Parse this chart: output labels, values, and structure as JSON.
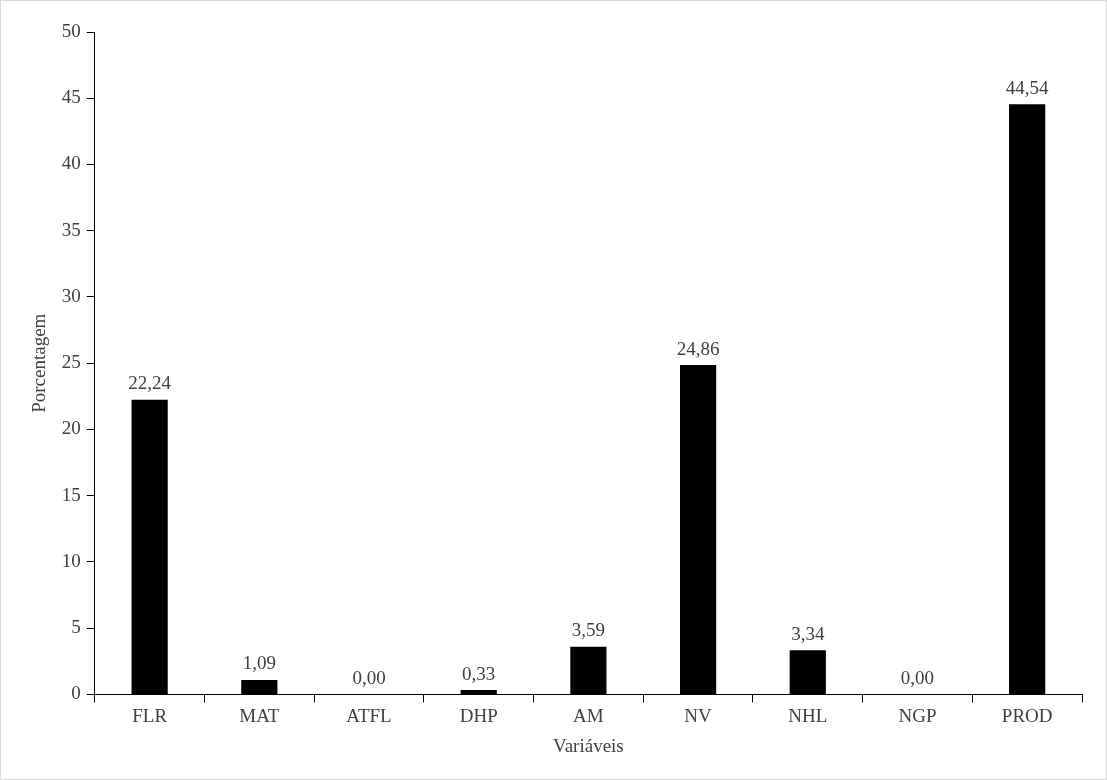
{
  "chart_data": {
    "type": "bar",
    "xlabel": "Variáveis",
    "ylabel": "Porcentagem",
    "categories": [
      "FLR",
      "MAT",
      "ATFL",
      "DHP",
      "AM",
      "NV",
      "NHL",
      "NGP",
      "PROD"
    ],
    "values": [
      22.24,
      1.09,
      0,
      0.33,
      3.59,
      24.86,
      3.34,
      0,
      44.54
    ],
    "value_labels": [
      "22,24",
      "1,09",
      "0,00",
      "0,33",
      "3,59",
      "24,86",
      "3,34",
      "0,00",
      "44,54"
    ],
    "color": "#000000",
    "ylim": [
      0,
      50
    ],
    "yticks": [
      0,
      5,
      10,
      15,
      20,
      25,
      30,
      35,
      40,
      45,
      50
    ],
    "grid": false,
    "legend": false
  }
}
